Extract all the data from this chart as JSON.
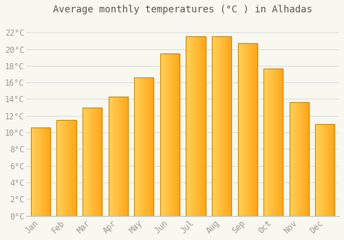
{
  "title": "Average monthly temperatures (°C ) in Alhadas",
  "months": [
    "Jan",
    "Feb",
    "Mar",
    "Apr",
    "May",
    "Jun",
    "Jul",
    "Aug",
    "Sep",
    "Oct",
    "Nov",
    "Dec"
  ],
  "values": [
    10.6,
    11.5,
    13.0,
    14.3,
    16.6,
    19.5,
    21.5,
    21.5,
    20.7,
    17.7,
    13.6,
    11.0
  ],
  "bar_color_left": "#FFD060",
  "bar_color_right": "#FFA500",
  "bar_edge_color": "#CC8800",
  "background_color": "#F8F8F0",
  "plot_bg_color": "#F8F8F0",
  "grid_color": "#DDDDDD",
  "ytick_labels": [
    "0°C",
    "2°C",
    "4°C",
    "6°C",
    "8°C",
    "10°C",
    "12°C",
    "14°C",
    "16°C",
    "18°C",
    "20°C",
    "22°C"
  ],
  "ytick_values": [
    0,
    2,
    4,
    6,
    8,
    10,
    12,
    14,
    16,
    18,
    20,
    22
  ],
  "ylim": [
    0,
    23.5
  ],
  "title_fontsize": 10,
  "tick_fontsize": 8.5,
  "tick_color": "#999999",
  "title_color": "#555555"
}
